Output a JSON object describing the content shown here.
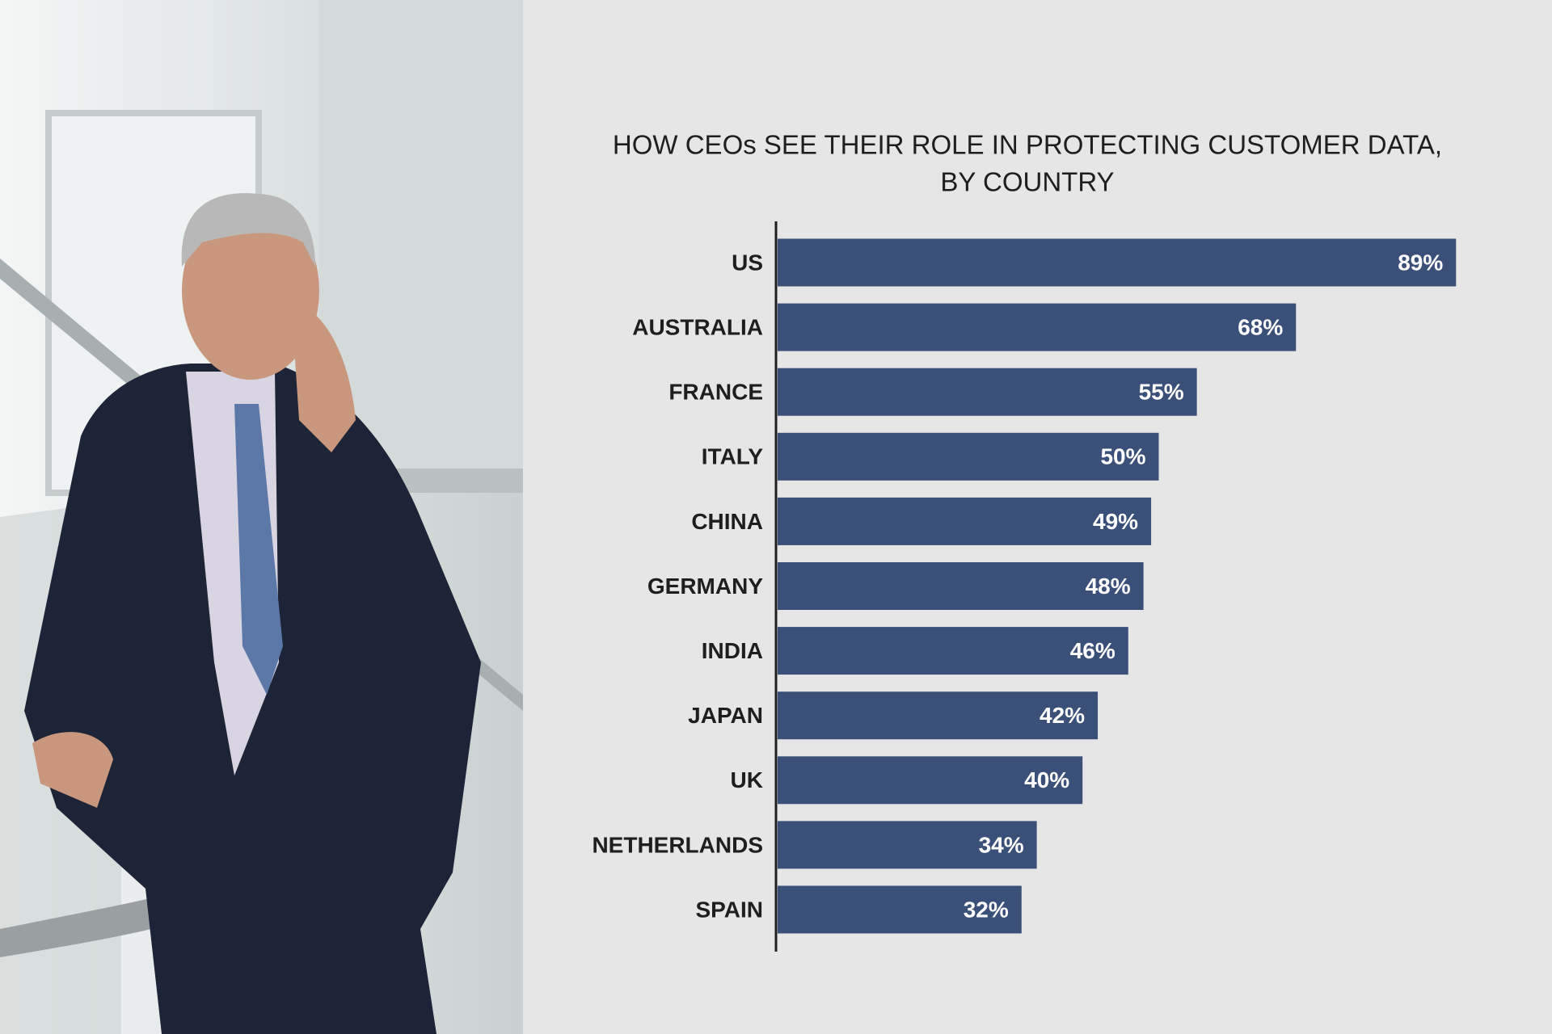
{
  "chart_data": {
    "type": "bar",
    "orientation": "horizontal",
    "title": [
      "HOW CEOs SEE THEIR ROLE IN PROTECTING CUSTOMER DATA,",
      "BY COUNTRY"
    ],
    "categories": [
      "US",
      "AUSTRALIA",
      "FRANCE",
      "ITALY",
      "CHINA",
      "GERMANY",
      "INDIA",
      "JAPAN",
      "UK",
      "NETHERLANDS",
      "SPAIN"
    ],
    "values": [
      89,
      68,
      55,
      50,
      49,
      48,
      46,
      42,
      40,
      34,
      32
    ],
    "value_labels": [
      "89%",
      "68%",
      "55%",
      "50%",
      "49%",
      "48%",
      "46%",
      "42%",
      "40%",
      "34%",
      "32%"
    ],
    "color": "#3a5079"
  }
}
